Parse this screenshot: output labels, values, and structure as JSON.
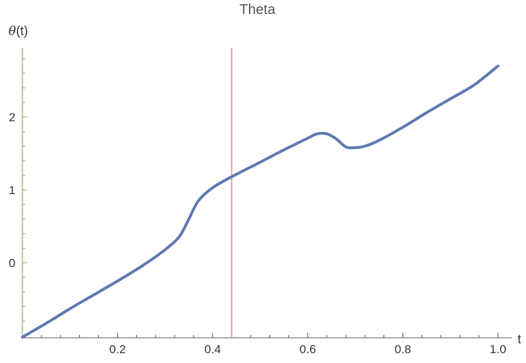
{
  "chart_data": {
    "type": "line",
    "title": "Theta",
    "xlabel": "t",
    "ylabel_symbol": "θ",
    "ylabel_suffix": "(t)",
    "xlim": [
      0,
      1.02
    ],
    "ylim": [
      -1.03,
      2.85
    ],
    "x_ticks": [
      0.2,
      0.4,
      0.6,
      0.8,
      1.0
    ],
    "x_tick_labels": [
      "0.2",
      "0.4",
      "0.6",
      "0.8",
      "1.0"
    ],
    "y_ticks": [
      0,
      1,
      2
    ],
    "y_tick_labels": [
      "0",
      "1",
      "2"
    ],
    "grid": false,
    "marker_line": {
      "x": 0.44,
      "color": "#e3a0a0"
    },
    "colors": {
      "series": "#5f78b0",
      "y_axis": "#7ab04f",
      "x_axis": "#555555",
      "title": "#555555"
    },
    "series": [
      {
        "x": [
          0.0,
          0.05,
          0.1,
          0.15,
          0.2,
          0.25,
          0.3,
          0.33,
          0.35,
          0.37,
          0.4,
          0.44,
          0.5,
          0.55,
          0.6,
          0.62,
          0.64,
          0.66,
          0.68,
          0.7,
          0.72,
          0.75,
          0.8,
          0.85,
          0.9,
          0.95,
          1.0
        ],
        "y": [
          -1.02,
          -0.83,
          -0.63,
          -0.44,
          -0.25,
          -0.05,
          0.18,
          0.36,
          0.6,
          0.85,
          1.03,
          1.18,
          1.38,
          1.55,
          1.71,
          1.77,
          1.77,
          1.7,
          1.59,
          1.58,
          1.6,
          1.68,
          1.86,
          2.06,
          2.25,
          2.44,
          2.7
        ]
      }
    ]
  }
}
